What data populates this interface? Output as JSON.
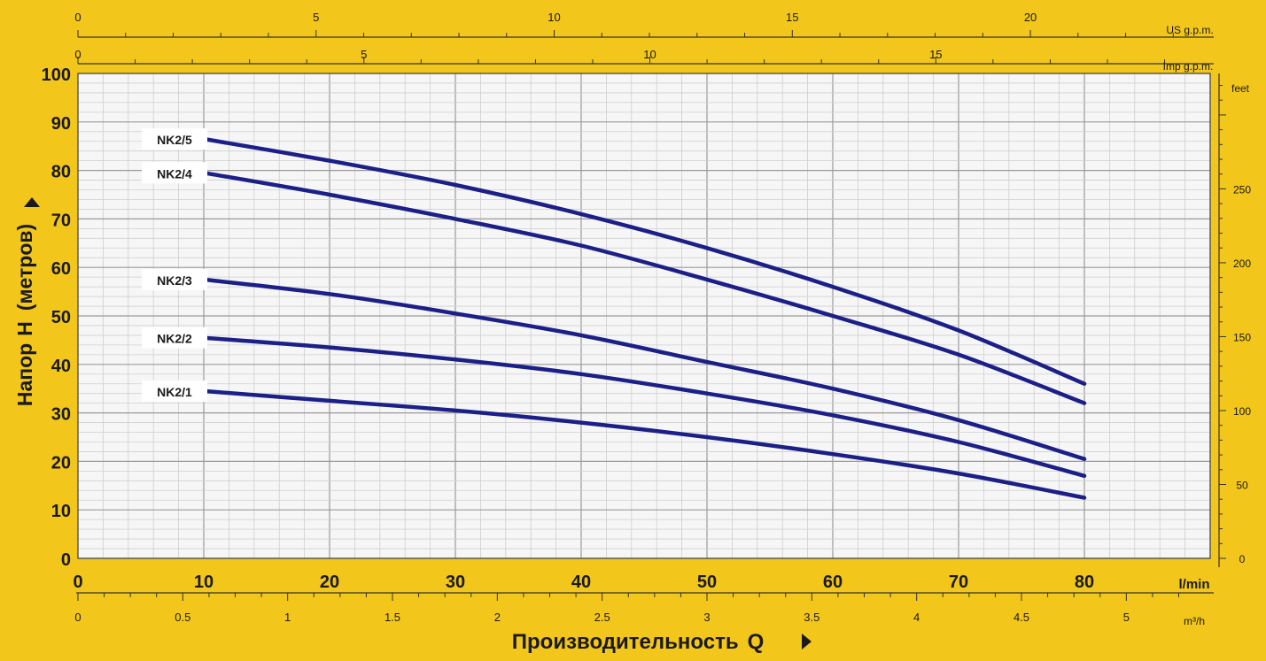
{
  "chart_data": {
    "type": "line",
    "xlabel_prefix": "Производительность",
    "xlabel_symbol": "Q",
    "ylabel_prefix": "Напор",
    "ylabel_symbol": "H",
    "ylabel_suffix": "(метров)",
    "x_unit": "l/min",
    "xlim": [
      0,
      90
    ],
    "ylim": [
      0,
      100
    ],
    "x_ticks": [
      "0",
      "10",
      "20",
      "30",
      "40",
      "50",
      "60",
      "70",
      "80"
    ],
    "y_ticks": [
      "0",
      "10",
      "20",
      "30",
      "40",
      "50",
      "60",
      "70",
      "80",
      "90",
      "100"
    ],
    "grid": true,
    "secondary_axes": {
      "m3h": {
        "unit": "m³/h",
        "ticks": [
          "0",
          "0.5",
          "1",
          "1.5",
          "2",
          "2.5",
          "3",
          "3.5",
          "4",
          "4.5",
          "5"
        ]
      },
      "us_gpm": {
        "unit": "US g.p.m.",
        "ticks": [
          "0",
          "5",
          "10",
          "15",
          "20"
        ]
      },
      "imp_gpm": {
        "unit": "Imp g.p.m.",
        "ticks": [
          "0",
          "5",
          "10",
          "15"
        ]
      },
      "feet": {
        "unit": "feet",
        "ticks": [
          "0",
          "50",
          "100",
          "150",
          "200",
          "250"
        ]
      }
    },
    "series": [
      {
        "name": "NK2/5",
        "color": "#1b1f87",
        "x": [
          10,
          20,
          30,
          40,
          50,
          60,
          70,
          80
        ],
        "y": [
          86.5,
          82,
          77,
          71,
          64,
          56,
          47,
          36
        ]
      },
      {
        "name": "NK2/4",
        "color": "#1b1f87",
        "x": [
          10,
          20,
          30,
          40,
          50,
          60,
          70,
          80
        ],
        "y": [
          79.5,
          75,
          70,
          64.5,
          57.5,
          50,
          42,
          32
        ]
      },
      {
        "name": "NK2/3",
        "color": "#1b1f87",
        "x": [
          10,
          20,
          30,
          40,
          50,
          60,
          70,
          80
        ],
        "y": [
          57.5,
          54.5,
          50.5,
          46,
          40.5,
          35,
          28.5,
          20.5
        ]
      },
      {
        "name": "NK2/2",
        "color": "#1b1f87",
        "x": [
          10,
          20,
          30,
          40,
          50,
          60,
          70,
          80
        ],
        "y": [
          45.5,
          43.5,
          41,
          38,
          34,
          29.5,
          24,
          17
        ]
      },
      {
        "name": "NK2/1",
        "color": "#1b1f87",
        "x": [
          10,
          20,
          30,
          40,
          50,
          60,
          70,
          80
        ],
        "y": [
          34.5,
          32.5,
          30.5,
          28,
          25,
          21.5,
          17.5,
          12.5
        ]
      }
    ]
  },
  "colors": {
    "background": "#f2c61a",
    "plot": "#f6f6f6",
    "grid": "#cfcfcf",
    "curve": "#1b1f87",
    "text": "#1a1a1a"
  }
}
